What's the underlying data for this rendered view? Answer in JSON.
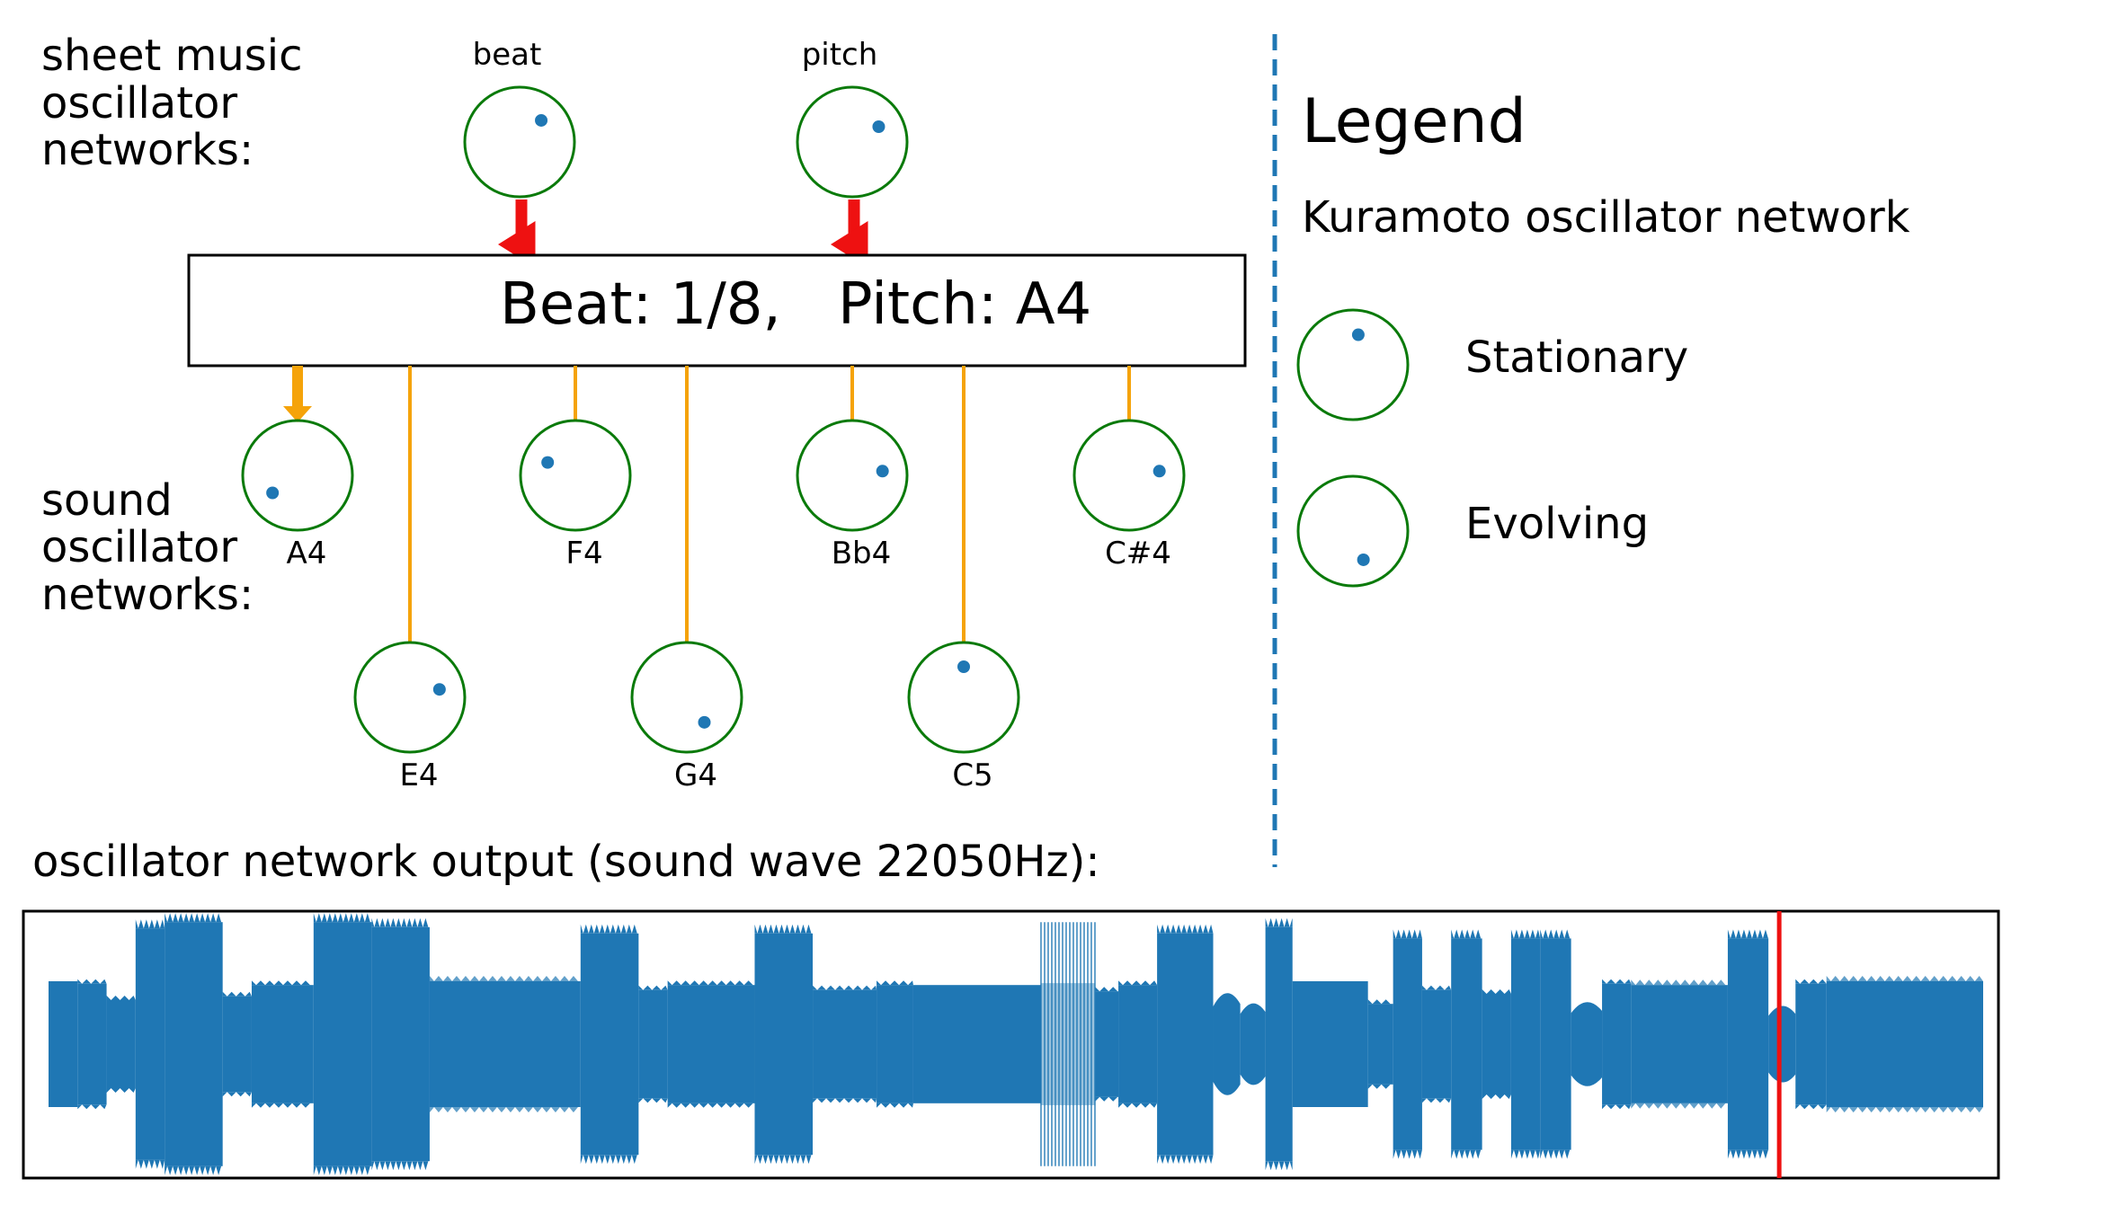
{
  "colors": {
    "ring": "#0a7a0a",
    "dot": "#1f77b4",
    "input_arrow": "#ee1111",
    "output_link": "#f5a30a",
    "divider": "#1f77b4",
    "wave": "#1f77b4",
    "playhead": "#ee1111"
  },
  "labels": {
    "sheet_music_lines": [
      "sheet music",
      "oscillator",
      "networks:"
    ],
    "sound_lines": [
      "sound",
      "oscillator",
      "networks:"
    ],
    "output_caption": "oscillator network output (sound wave 22050Hz):"
  },
  "sheet_oscillators": [
    {
      "label": "beat",
      "phase_deg": 45
    },
    {
      "label": "pitch",
      "phase_deg": 60
    }
  ],
  "state_box": {
    "beat_text": "Beat: 1/8,",
    "pitch_text": "Pitch: A4"
  },
  "sound_oscillators": [
    {
      "label": "A4",
      "phase_deg": 235,
      "active": true
    },
    {
      "label": "E4",
      "phase_deg": 75
    },
    {
      "label": "F4",
      "phase_deg": 295
    },
    {
      "label": "G4",
      "phase_deg": 145
    },
    {
      "label": "Bb4",
      "phase_deg": 82
    },
    {
      "label": "C5",
      "phase_deg": 0
    },
    {
      "label": "C#4",
      "phase_deg": 82
    }
  ],
  "legend": {
    "title": "Legend",
    "subtitle": "Kuramoto oscillator network",
    "items": [
      {
        "label": "Stationary",
        "phase_deg": 10
      },
      {
        "label": "Evolving",
        "phase_deg": 160
      }
    ]
  },
  "waveform": {
    "playhead_fraction": 0.889,
    "segments": [
      {
        "start": 0.0,
        "end": 0.015,
        "amp": 0.5,
        "style": "solid"
      },
      {
        "start": 0.015,
        "end": 0.03,
        "amp": 0.48,
        "style": "cap"
      },
      {
        "start": 0.03,
        "end": 0.045,
        "amp": 0.35,
        "style": "cap"
      },
      {
        "start": 0.045,
        "end": 0.06,
        "amp": 0.92,
        "style": "spiky"
      },
      {
        "start": 0.06,
        "end": 0.09,
        "amp": 0.97,
        "style": "spiky"
      },
      {
        "start": 0.09,
        "end": 0.105,
        "amp": 0.38,
        "style": "cap"
      },
      {
        "start": 0.105,
        "end": 0.137,
        "amp": 0.47,
        "style": "cap"
      },
      {
        "start": 0.137,
        "end": 0.167,
        "amp": 0.97,
        "style": "spiky"
      },
      {
        "start": 0.167,
        "end": 0.197,
        "amp": 0.93,
        "style": "spiky"
      },
      {
        "start": 0.197,
        "end": 0.275,
        "amp": 0.5,
        "style": "lined"
      },
      {
        "start": 0.275,
        "end": 0.305,
        "amp": 0.88,
        "style": "spiky"
      },
      {
        "start": 0.305,
        "end": 0.32,
        "amp": 0.43,
        "style": "cap"
      },
      {
        "start": 0.32,
        "end": 0.365,
        "amp": 0.47,
        "style": "cap"
      },
      {
        "start": 0.365,
        "end": 0.395,
        "amp": 0.88,
        "style": "spiky"
      },
      {
        "start": 0.395,
        "end": 0.428,
        "amp": 0.43,
        "style": "cap"
      },
      {
        "start": 0.428,
        "end": 0.447,
        "amp": 0.47,
        "style": "cap"
      },
      {
        "start": 0.447,
        "end": 0.513,
        "amp": 0.47,
        "style": "solid"
      },
      {
        "start": 0.513,
        "end": 0.541,
        "amp": 0.97,
        "style": "ghost"
      },
      {
        "start": 0.541,
        "end": 0.553,
        "amp": 0.42,
        "style": "cap"
      },
      {
        "start": 0.553,
        "end": 0.573,
        "amp": 0.47,
        "style": "cap"
      },
      {
        "start": 0.573,
        "end": 0.602,
        "amp": 0.88,
        "style": "spiky"
      },
      {
        "start": 0.602,
        "end": 0.616,
        "amp": 0.4,
        "style": "bulge"
      },
      {
        "start": 0.616,
        "end": 0.629,
        "amp": 0.32,
        "style": "bulge"
      },
      {
        "start": 0.629,
        "end": 0.643,
        "amp": 0.93,
        "style": "spiky"
      },
      {
        "start": 0.643,
        "end": 0.682,
        "amp": 0.5,
        "style": "solid"
      },
      {
        "start": 0.682,
        "end": 0.695,
        "amp": 0.32,
        "style": "cap"
      },
      {
        "start": 0.695,
        "end": 0.71,
        "amp": 0.84,
        "style": "spiky"
      },
      {
        "start": 0.71,
        "end": 0.725,
        "amp": 0.43,
        "style": "cap"
      },
      {
        "start": 0.725,
        "end": 0.741,
        "amp": 0.84,
        "style": "spiky"
      },
      {
        "start": 0.741,
        "end": 0.756,
        "amp": 0.4,
        "style": "cap"
      },
      {
        "start": 0.756,
        "end": 0.771,
        "amp": 0.84,
        "style": "spiky"
      },
      {
        "start": 0.771,
        "end": 0.787,
        "amp": 0.84,
        "style": "spiky"
      },
      {
        "start": 0.787,
        "end": 0.803,
        "amp": 0.33,
        "style": "bulge"
      },
      {
        "start": 0.803,
        "end": 0.818,
        "amp": 0.48,
        "style": "cap"
      },
      {
        "start": 0.818,
        "end": 0.868,
        "amp": 0.47,
        "style": "lined"
      },
      {
        "start": 0.868,
        "end": 0.889,
        "amp": 0.84,
        "style": "spiky"
      },
      {
        "start": 0.889,
        "end": 0.903,
        "amp": 0.3,
        "style": "bulge"
      },
      {
        "start": 0.903,
        "end": 0.919,
        "amp": 0.48,
        "style": "cap"
      },
      {
        "start": 0.919,
        "end": 1.0,
        "amp": 0.5,
        "style": "lined"
      }
    ]
  }
}
